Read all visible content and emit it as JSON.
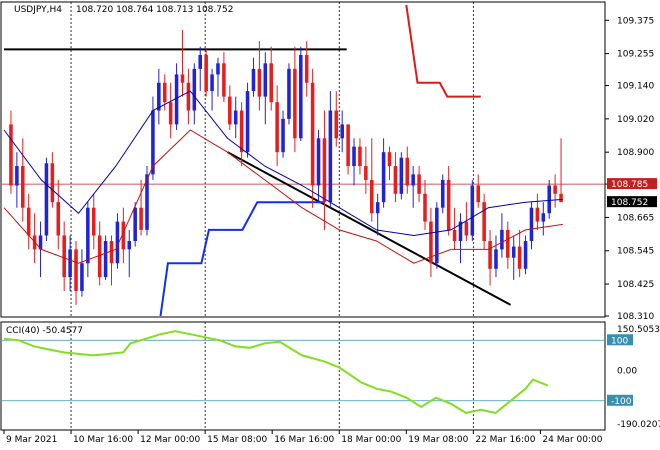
{
  "header": {
    "symbol": "USDJPY,H4",
    "ohlc": "108.720 108.764 108.713 108.752"
  },
  "indicator": {
    "label": "CCI(40) -50.4577",
    "axis_labels": [
      "150.5053",
      "100",
      "0.00",
      "-100",
      "-190.0207"
    ]
  },
  "price_axis": {
    "ticks": [
      "109.375",
      "109.255",
      "109.140",
      "109.020",
      "108.900",
      "108.785",
      "108.665",
      "108.545",
      "108.425",
      "108.310"
    ],
    "current_label": "108.752",
    "marker_label": "108.785"
  },
  "time_axis": {
    "labels": [
      "9 Mar 2021",
      "10 Mar 16:00",
      "12 Mar 00:00",
      "15 Mar 08:00",
      "16 Mar 16:00",
      "18 Mar 00:00",
      "19 Mar 08:00",
      "22 Mar 16:00",
      "24 Mar 00:00"
    ]
  },
  "colors": {
    "bull": "#1f24d6",
    "bear": "#e61e1e",
    "ma_fast": "#0000b0",
    "ma_slow": "#c81010",
    "stop_line": "#e01818",
    "support_step": "#1030f0",
    "cci": "#80e020",
    "trend": "#000000",
    "grid_h": "#3a8fb0",
    "marker": "#c02020"
  },
  "chart_data": [
    {
      "type": "candlestick",
      "title": "USDJPY,H4",
      "x_range": [
        0,
        160
      ],
      "ylim": [
        108.31,
        109.43
      ],
      "y_ticks": [
        109.375,
        109.255,
        109.14,
        109.02,
        108.9,
        108.785,
        108.665,
        108.545,
        108.425,
        108.31
      ],
      "x_labels": [
        {
          "i": 0,
          "text": "9 Mar 2021"
        },
        {
          "i": 18,
          "text": "10 Mar 16:00"
        },
        {
          "i": 36,
          "text": "12 Mar 00:00"
        },
        {
          "i": 54,
          "text": "15 Mar 08:00"
        },
        {
          "i": 72,
          "text": "16 Mar 16:00"
        },
        {
          "i": 90,
          "text": "18 Mar 00:00"
        },
        {
          "i": 108,
          "text": "19 Mar 08:00"
        },
        {
          "i": 126,
          "text": "22 Mar 16:00"
        },
        {
          "i": 144,
          "text": "24 Mar 00:00"
        }
      ],
      "candles": [
        [
          109.0,
          109.05,
          108.75,
          108.78
        ],
        [
          108.78,
          108.9,
          108.7,
          108.85
        ],
        [
          108.85,
          108.95,
          108.65,
          108.7
        ],
        [
          108.7,
          108.75,
          108.55,
          108.6
        ],
        [
          108.6,
          108.68,
          108.5,
          108.55
        ],
        [
          108.55,
          108.65,
          108.45,
          108.6
        ],
        [
          108.6,
          108.88,
          108.58,
          108.86
        ],
        [
          108.86,
          108.9,
          108.7,
          108.72
        ],
        [
          108.72,
          108.8,
          108.55,
          108.6
        ],
        [
          108.6,
          108.65,
          108.4,
          108.45
        ],
        [
          108.45,
          108.6,
          108.4,
          108.55
        ],
        [
          108.55,
          108.58,
          108.35,
          108.4
        ],
        [
          108.4,
          108.55,
          108.38,
          108.5
        ],
        [
          108.5,
          108.72,
          108.45,
          108.7
        ],
        [
          108.7,
          108.75,
          108.55,
          108.6
        ],
        [
          108.6,
          108.65,
          108.42,
          108.45
        ],
        [
          108.45,
          108.6,
          108.44,
          108.58
        ],
        [
          108.58,
          108.6,
          108.42,
          108.5
        ],
        [
          108.5,
          108.68,
          108.48,
          108.65
        ],
        [
          108.65,
          108.7,
          108.5,
          108.55
        ],
        [
          108.55,
          108.62,
          108.45,
          108.58
        ],
        [
          108.58,
          108.72,
          108.56,
          108.7
        ],
        [
          108.7,
          108.8,
          108.6,
          108.62
        ],
        [
          108.62,
          108.85,
          108.6,
          108.82
        ],
        [
          108.82,
          109.1,
          108.8,
          109.05
        ],
        [
          109.05,
          109.2,
          109.0,
          109.15
        ],
        [
          109.15,
          109.18,
          109.05,
          109.08
        ],
        [
          109.08,
          109.15,
          108.95,
          109.0
        ],
        [
          109.0,
          109.22,
          108.98,
          109.18
        ],
        [
          109.18,
          109.34,
          109.1,
          109.15
        ],
        [
          109.15,
          109.2,
          109.0,
          109.05
        ],
        [
          109.05,
          109.22,
          109.0,
          109.2
        ],
        [
          109.2,
          109.28,
          109.12,
          109.25
        ],
        [
          109.25,
          109.27,
          109.1,
          109.12
        ],
        [
          109.12,
          109.2,
          109.05,
          109.18
        ],
        [
          109.18,
          109.24,
          109.1,
          109.22
        ],
        [
          109.22,
          109.26,
          109.08,
          109.1
        ],
        [
          109.1,
          109.14,
          108.98,
          109.0
        ],
        [
          109.0,
          109.1,
          108.95,
          109.05
        ],
        [
          109.05,
          109.08,
          108.85,
          108.9
        ],
        [
          108.9,
          109.15,
          108.88,
          109.12
        ],
        [
          109.12,
          109.24,
          109.1,
          109.2
        ],
        [
          109.2,
          109.3,
          109.05,
          109.1
        ],
        [
          109.1,
          109.26,
          109.0,
          109.22
        ],
        [
          109.22,
          109.28,
          109.05,
          109.08
        ],
        [
          109.08,
          109.14,
          108.85,
          108.9
        ],
        [
          108.9,
          109.05,
          108.88,
          109.02
        ],
        [
          109.02,
          109.22,
          109.0,
          109.2
        ],
        [
          109.2,
          109.28,
          108.9,
          108.95
        ],
        [
          108.95,
          109.28,
          108.94,
          109.25
        ],
        [
          109.25,
          109.3,
          109.1,
          109.15
        ],
        [
          109.15,
          109.2,
          108.7,
          108.78
        ],
        [
          108.78,
          108.98,
          108.72,
          108.95
        ],
        [
          108.95,
          109.05,
          108.62,
          108.72
        ],
        [
          108.72,
          109.12,
          108.7,
          109.05
        ],
        [
          109.05,
          109.12,
          108.92,
          108.95
        ],
        [
          108.95,
          109.05,
          108.9,
          109.0
        ],
        [
          109.0,
          109.0,
          108.82,
          108.85
        ],
        [
          108.85,
          108.95,
          108.78,
          108.92
        ],
        [
          108.92,
          108.95,
          108.82,
          108.85
        ],
        [
          108.85,
          108.92,
          108.75,
          108.8
        ],
        [
          108.8,
          108.95,
          108.65,
          108.68
        ],
        [
          108.68,
          108.75,
          108.6,
          108.72
        ],
        [
          108.72,
          108.95,
          108.7,
          108.9
        ],
        [
          108.9,
          108.92,
          108.8,
          108.85
        ],
        [
          108.85,
          108.9,
          108.72,
          108.75
        ],
        [
          108.75,
          108.9,
          108.73,
          108.88
        ],
        [
          108.88,
          108.92,
          108.75,
          108.78
        ],
        [
          108.78,
          108.85,
          108.7,
          108.82
        ],
        [
          108.82,
          108.85,
          108.72,
          108.75
        ],
        [
          108.75,
          108.8,
          108.62,
          108.65
        ],
        [
          108.65,
          108.7,
          108.45,
          108.5
        ],
        [
          108.5,
          108.72,
          108.48,
          108.7
        ],
        [
          108.7,
          108.82,
          108.68,
          108.8
        ],
        [
          108.8,
          108.85,
          108.6,
          108.62
        ],
        [
          108.62,
          108.7,
          108.55,
          108.58
        ],
        [
          108.58,
          108.68,
          108.5,
          108.65
        ],
        [
          108.65,
          108.72,
          108.58,
          108.6
        ],
        [
          108.6,
          108.8,
          108.58,
          108.78
        ],
        [
          108.78,
          108.82,
          108.7,
          108.72
        ],
        [
          108.72,
          108.75,
          108.55,
          108.58
        ],
        [
          108.58,
          108.62,
          108.42,
          108.48
        ],
        [
          108.48,
          108.6,
          108.45,
          108.55
        ],
        [
          108.55,
          108.68,
          108.52,
          108.62
        ],
        [
          108.62,
          108.65,
          108.48,
          108.52
        ],
        [
          108.52,
          108.6,
          108.44,
          108.56
        ],
        [
          108.56,
          108.62,
          108.45,
          108.48
        ],
        [
          108.48,
          108.6,
          108.46,
          108.58
        ],
        [
          108.58,
          108.72,
          108.55,
          108.7
        ],
        [
          108.7,
          108.75,
          108.62,
          108.65
        ],
        [
          108.65,
          108.72,
          108.6,
          108.68
        ],
        [
          108.68,
          108.8,
          108.66,
          108.78
        ],
        [
          108.78,
          108.82,
          108.7,
          108.75
        ],
        [
          108.75,
          108.95,
          108.72,
          108.72
        ]
      ],
      "series": [
        {
          "values_mode": "overlay",
          "points": [
            [
              0,
              108.98
            ],
            [
              10,
              108.8
            ],
            [
              20,
              108.68
            ],
            [
              30,
              108.85
            ],
            [
              40,
              109.05
            ],
            [
              50,
              109.12
            ],
            [
              60,
              108.95
            ],
            [
              70,
              108.85
            ],
            [
              80,
              108.78
            ],
            [
              90,
              108.7
            ],
            [
              100,
              108.62
            ],
            [
              110,
              108.6
            ],
            [
              120,
              108.62
            ],
            [
              130,
              108.7
            ],
            [
              140,
              108.72
            ],
            [
              150,
              108.73
            ]
          ]
        },
        {
          "values_mode": "overlay",
          "points": [
            [
              0,
              108.7
            ],
            [
              10,
              108.55
            ],
            [
              20,
              108.5
            ],
            [
              30,
              108.55
            ],
            [
              40,
              108.85
            ],
            [
              50,
              108.98
            ],
            [
              60,
              108.9
            ],
            [
              70,
              108.8
            ],
            [
              80,
              108.7
            ],
            [
              90,
              108.62
            ],
            [
              100,
              108.58
            ],
            [
              110,
              108.5
            ],
            [
              120,
              108.55
            ],
            [
              130,
              108.55
            ],
            [
              140,
              108.62
            ],
            [
              150,
              108.64
            ]
          ]
        }
      ],
      "overlays": {
        "horizontal_line": [
          [
            0,
            109.27
          ],
          [
            92,
            109.27
          ]
        ],
        "resistance_marker": 108.785,
        "trend_line": [
          [
            60,
            108.9
          ],
          [
            136,
            108.35
          ]
        ],
        "support_steps": [
          [
            42,
            108.31
          ],
          [
            44,
            108.5
          ],
          [
            53,
            108.5
          ],
          [
            55,
            108.62
          ],
          [
            64,
            108.62
          ],
          [
            68,
            108.72
          ],
          [
            86,
            108.72
          ]
        ],
        "stop_steps": [
          [
            108,
            109.43
          ],
          [
            111,
            109.15
          ],
          [
            117,
            109.15
          ],
          [
            119,
            109.1
          ],
          [
            128,
            109.1
          ]
        ]
      }
    },
    {
      "type": "line",
      "title": "CCI(40) -50.4577",
      "x_range": [
        0,
        160
      ],
      "ylim": [
        -190.0207,
        150.5053
      ],
      "y_ticks": [
        100,
        0.0,
        -100
      ],
      "series": [
        {
          "points": [
            [
              0,
              105
            ],
            [
              4,
              100
            ],
            [
              8,
              80
            ],
            [
              12,
              70
            ],
            [
              16,
              60
            ],
            [
              20,
              55
            ],
            [
              24,
              50
            ],
            [
              28,
              55
            ],
            [
              32,
              60
            ],
            [
              34,
              90
            ],
            [
              38,
              105
            ],
            [
              42,
              120
            ],
            [
              46,
              130
            ],
            [
              50,
              120
            ],
            [
              54,
              110
            ],
            [
              58,
              100
            ],
            [
              62,
              80
            ],
            [
              66,
              75
            ],
            [
              70,
              90
            ],
            [
              74,
              95
            ],
            [
              80,
              50
            ],
            [
              86,
              30
            ],
            [
              90,
              10
            ],
            [
              96,
              -40
            ],
            [
              100,
              -60
            ],
            [
              104,
              -70
            ],
            [
              108,
              -90
            ],
            [
              112,
              -120
            ],
            [
              116,
              -90
            ],
            [
              120,
              -110
            ],
            [
              124,
              -140
            ],
            [
              128,
              -130
            ],
            [
              132,
              -140
            ],
            [
              136,
              -100
            ],
            [
              140,
              -60
            ],
            [
              142,
              -30
            ],
            [
              146,
              -50
            ]
          ]
        }
      ]
    }
  ]
}
